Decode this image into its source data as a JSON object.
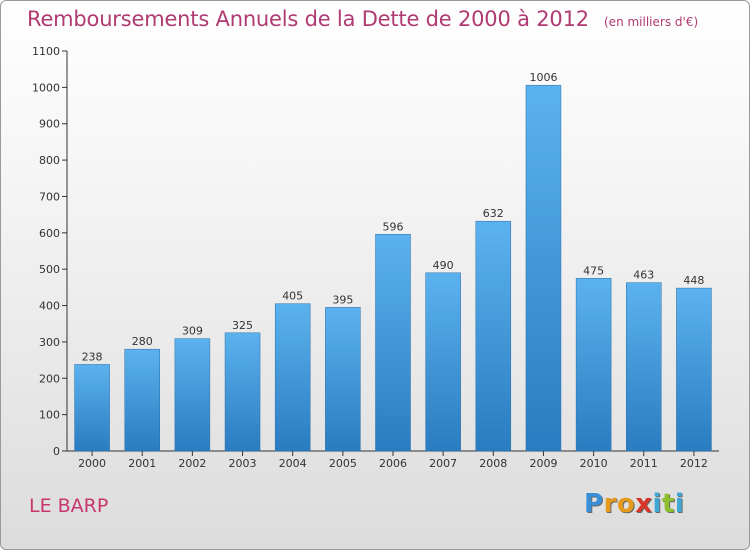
{
  "title": "Remboursements Annuels de la Dette de 2000 à 2012",
  "unit": "(en milliers d'€)",
  "commune": "LE BARP",
  "logo": {
    "text": "Proxiti",
    "letters": [
      {
        "char": "P",
        "color": "#3a8fd9"
      },
      {
        "char": "r",
        "color": "#e69a1c"
      },
      {
        "char": "o",
        "color": "#e69a1c"
      },
      {
        "char": "x",
        "color": "#d9362b"
      },
      {
        "char": "i",
        "color": "#3fa7d6"
      },
      {
        "char": "t",
        "color": "#8cbf2a"
      },
      {
        "char": "i",
        "color": "#3fa7d6"
      }
    ]
  },
  "chart_data": {
    "type": "bar",
    "title": "Remboursements Annuels de la Dette de 2000 à 2012",
    "unit": "(en milliers d'€)",
    "categories": [
      "2000",
      "2001",
      "2002",
      "2003",
      "2004",
      "2005",
      "2006",
      "2007",
      "2008",
      "2009",
      "2010",
      "2011",
      "2012"
    ],
    "values": [
      238,
      280,
      309,
      325,
      405,
      395,
      596,
      490,
      632,
      1006,
      475,
      463,
      448
    ],
    "ylim": [
      0,
      1100
    ],
    "yticks": [
      0,
      100,
      200,
      300,
      400,
      500,
      600,
      700,
      800,
      900,
      1000,
      1100
    ],
    "grid": false,
    "bar_color": "#4a9fe0"
  }
}
